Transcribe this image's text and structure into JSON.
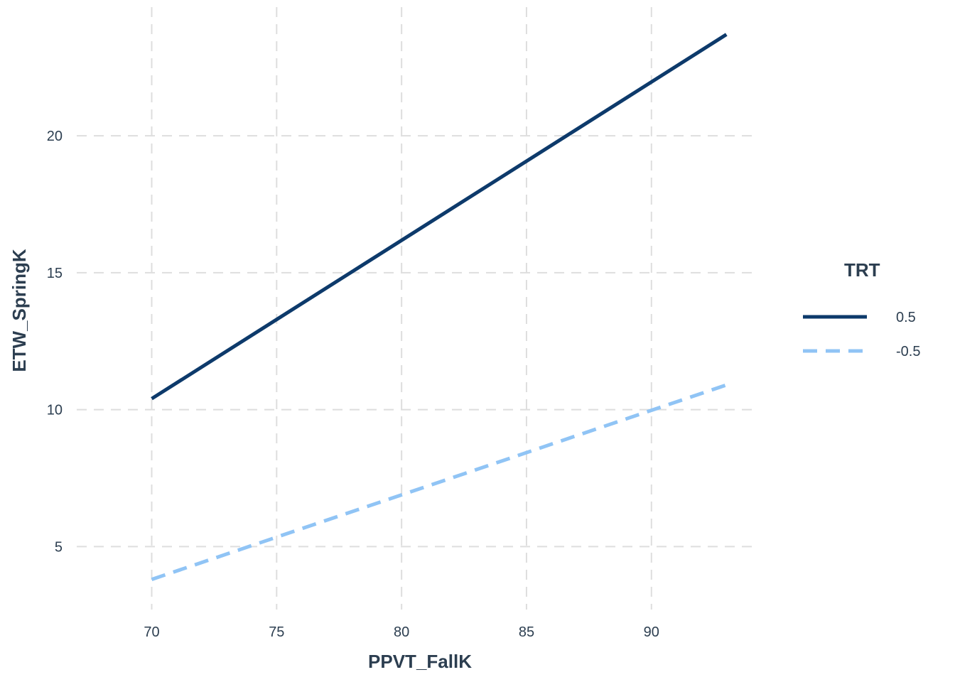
{
  "chart_data": {
    "type": "line",
    "xlabel": "PPVT_FallK",
    "ylabel": "ETW_SpringK",
    "xlim": [
      67,
      94.3
    ],
    "ylim": [
      2.7,
      24.7
    ],
    "x_ticks": [
      70,
      75,
      80,
      85,
      90
    ],
    "y_ticks": [
      5,
      10,
      15,
      20
    ],
    "x_tick_labels": [
      "70",
      "75",
      "80",
      "85",
      "90"
    ],
    "y_tick_labels": [
      "5",
      "10",
      "15",
      "20"
    ],
    "grid": true,
    "legend": {
      "title": "TRT",
      "position": "right"
    },
    "series": [
      {
        "name": "0.5",
        "color": "#0d3a6b",
        "line_style": "solid",
        "x": [
          70,
          93
        ],
        "y": [
          10.4,
          23.7
        ]
      },
      {
        "name": "-0.5",
        "color": "#90c4f5",
        "line_style": "dashed",
        "x": [
          70,
          93
        ],
        "y": [
          3.8,
          10.9
        ]
      }
    ]
  }
}
